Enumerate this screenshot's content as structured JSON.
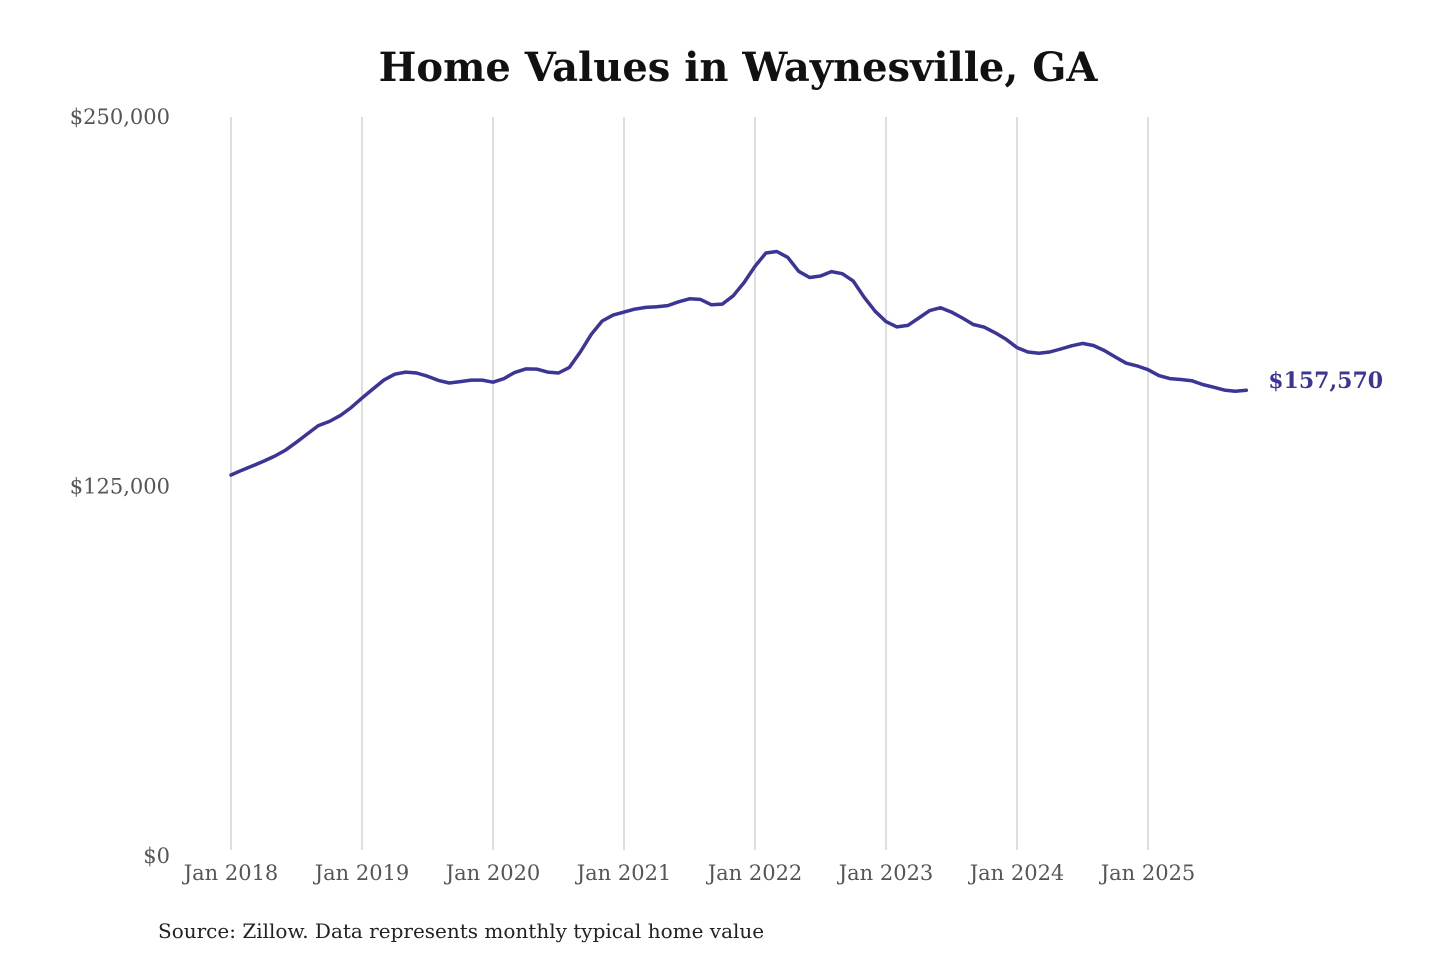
{
  "chart_data": {
    "type": "line",
    "title": "Home Values in Waynesville, GA",
    "xlabel": "",
    "ylabel": "",
    "source": "Source: Zillow. Data represents monthly typical home value",
    "ylim": [
      0,
      250000
    ],
    "y_ticks": [
      {
        "value": 0,
        "label": "$0"
      },
      {
        "value": 125000,
        "label": "$125,000"
      },
      {
        "value": 250000,
        "label": "$250,000"
      }
    ],
    "x_ticks": [
      {
        "month_index": 0,
        "label": "Jan 2018"
      },
      {
        "month_index": 12,
        "label": "Jan 2019"
      },
      {
        "month_index": 24,
        "label": "Jan 2020"
      },
      {
        "month_index": 36,
        "label": "Jan 2021"
      },
      {
        "month_index": 48,
        "label": "Jan 2022"
      },
      {
        "month_index": 60,
        "label": "Jan 2023"
      },
      {
        "month_index": 72,
        "label": "Jan 2024"
      },
      {
        "month_index": 84,
        "label": "Jan 2025"
      }
    ],
    "grid": "vertical",
    "x_start": "Jan 2018",
    "x_frequency": "monthly",
    "line_color": "#3b3596",
    "end_label": "$157,570",
    "series": [
      {
        "name": "Typical home value",
        "values": [
          128900,
          130500,
          132000,
          133600,
          135300,
          137300,
          140000,
          142800,
          145600,
          147000,
          149000,
          151700,
          154900,
          158000,
          161000,
          163000,
          163700,
          163400,
          162300,
          160900,
          160000,
          160500,
          161000,
          161000,
          160300,
          161500,
          163600,
          164800,
          164700,
          163700,
          163400,
          165300,
          170500,
          176500,
          181000,
          183000,
          184000,
          185000,
          185600,
          185800,
          186200,
          187500,
          188500,
          188300,
          186500,
          186700,
          189500,
          194000,
          199500,
          204000,
          204500,
          202500,
          197800,
          195700,
          196200,
          197700,
          197000,
          194500,
          189000,
          184300,
          180800,
          179000,
          179500,
          182000,
          184500,
          185500,
          184000,
          182000,
          179800,
          178900,
          177000,
          174800,
          172000,
          170500,
          170100,
          170500,
          171500,
          172600,
          173400,
          172700,
          171000,
          168800,
          166700,
          165800,
          164500,
          162500,
          161500,
          161200,
          160800,
          159500,
          158600,
          157600,
          157200,
          157570
        ]
      }
    ]
  }
}
